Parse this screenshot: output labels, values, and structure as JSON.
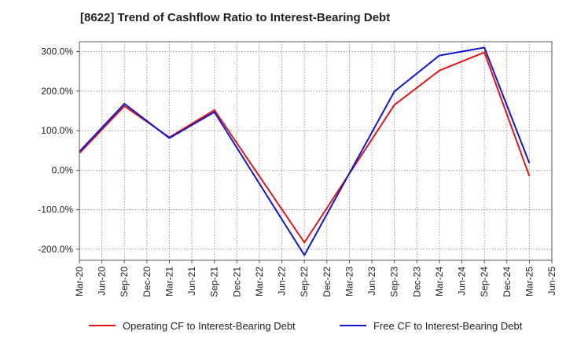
{
  "chart_data": {
    "type": "line",
    "title": "[8622]  Trend of Cashflow Ratio to Interest-Bearing Debt",
    "xlabel": "",
    "ylabel": "",
    "x_ticks": [
      "Mar-20",
      "Jun-20",
      "Sep-20",
      "Dec-20",
      "Mar-21",
      "Jun-21",
      "Sep-21",
      "Dec-21",
      "Mar-22",
      "Jun-22",
      "Sep-22",
      "Dec-22",
      "Mar-23",
      "Jun-23",
      "Sep-23",
      "Dec-23",
      "Mar-24",
      "Jun-24",
      "Sep-24",
      "Dec-24",
      "Mar-25",
      "Jun-25"
    ],
    "y_ticks": [
      300,
      200,
      100,
      0,
      -100,
      -200
    ],
    "y_tick_labels": [
      "300.0%",
      "200.0%",
      "100.0%",
      "0.0%",
      "-100.0%",
      "-200.0%"
    ],
    "ylim": [
      -228,
      325
    ],
    "grid": true,
    "legend_position": "bottom",
    "series": [
      {
        "name": "Operating CF to Interest-Bearing Debt",
        "color": "#e8141a",
        "x": [
          "Mar-20",
          "Sep-20",
          "Mar-21",
          "Sep-21",
          "Sep-22",
          "Sep-23",
          "Mar-24",
          "Sep-24",
          "Mar-25"
        ],
        "values": [
          43,
          162,
          83,
          152,
          -183,
          165,
          252,
          298,
          -15
        ]
      },
      {
        "name": "Free CF to Interest-Bearing Debt",
        "color": "#1414d2",
        "x": [
          "Mar-20",
          "Sep-20",
          "Mar-21",
          "Sep-21",
          "Sep-22",
          "Sep-23",
          "Mar-24",
          "Sep-24",
          "Mar-25"
        ],
        "values": [
          47,
          168,
          81,
          147,
          -215,
          199,
          290,
          310,
          18
        ]
      }
    ]
  }
}
